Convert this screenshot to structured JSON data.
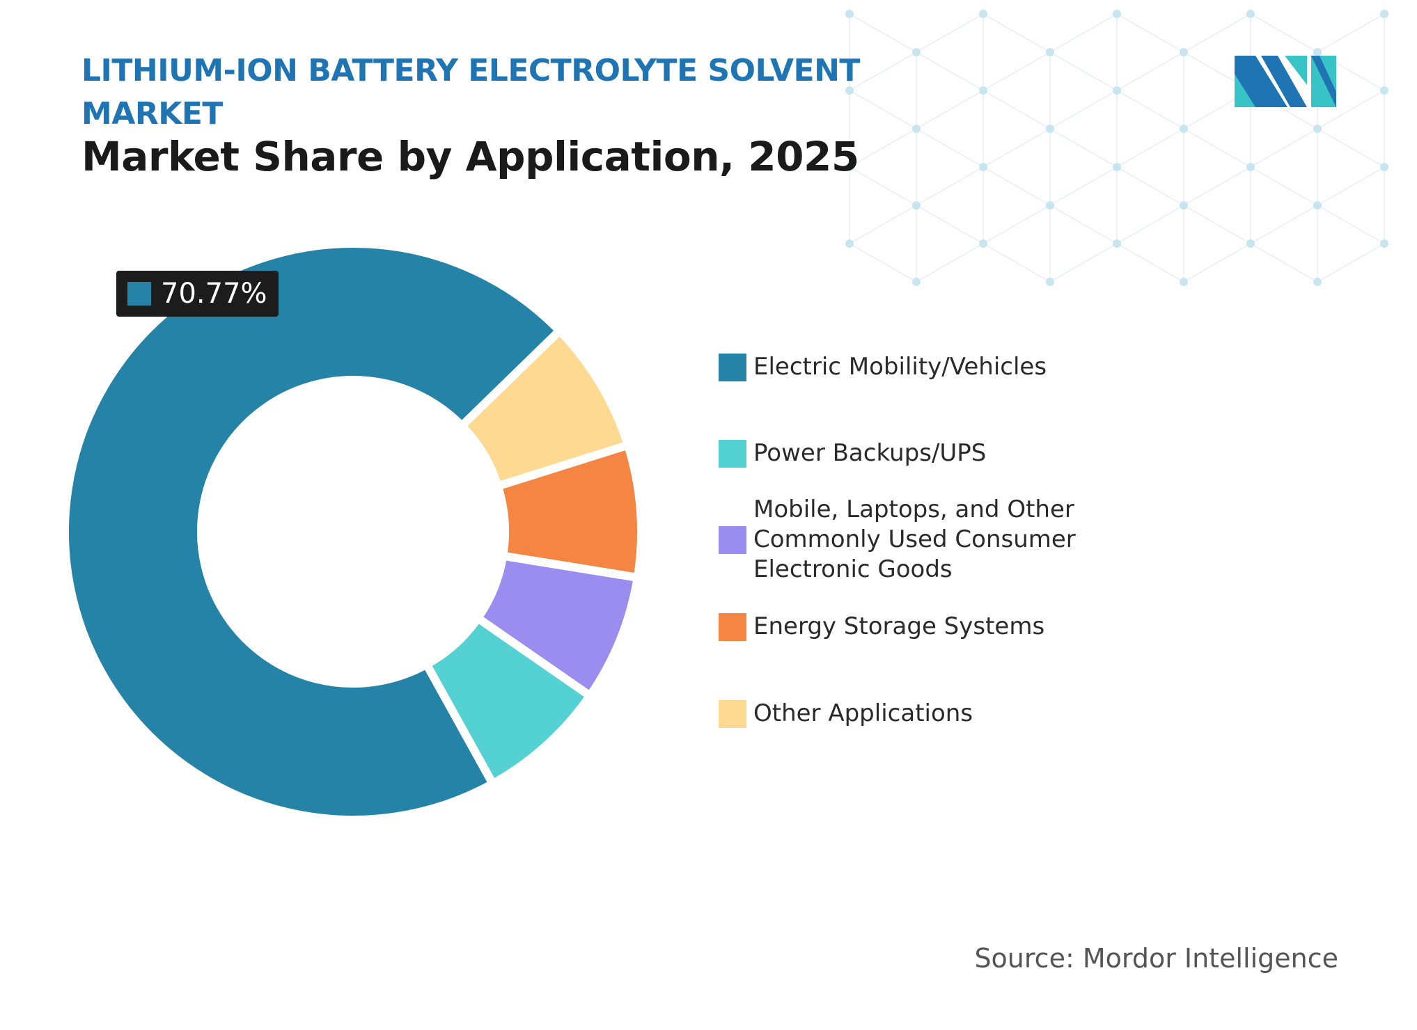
{
  "header": {
    "market_line_1": "LITHIUM-ION BATTERY ELECTROLYTE SOLVENT",
    "market_line_2": "MARKET",
    "title": "Market Share by Application, 2025"
  },
  "callout": {
    "label": "70.77%"
  },
  "source": {
    "text": "Source: Mordor Intelligence"
  },
  "colors": {
    "header_blue": "#1f74b4",
    "electric_mobility": "#2683a8",
    "power_backups": "#54d1d2",
    "consumer_electronics": "#9b8cf0",
    "energy_storage": "#f48542",
    "other_applications": "#fdd992",
    "pattern_dot": "#c7e5f1",
    "pattern_line": "#e8eef2"
  },
  "chart_data": {
    "type": "pie",
    "title": "Market Share by Application, 2025",
    "donut": true,
    "slices": [
      {
        "label": "Electric Mobility/Vehicles",
        "value": 70.77,
        "color": "#2683a8"
      },
      {
        "label": "Power Backups/UPS",
        "value": 7.3,
        "color": "#54d1d2"
      },
      {
        "label": "Mobile, Laptops, and Other Commonly Used Consumer Electronic Goods",
        "value": 7.1,
        "color": "#9b8cf0"
      },
      {
        "label": "Energy Storage Systems",
        "value": 7.4,
        "color": "#f48542"
      },
      {
        "label": "Other Applications",
        "value": 7.43,
        "color": "#fdd992"
      }
    ],
    "data_labels": [
      "70.77%"
    ],
    "legend_position": "right"
  },
  "legend": {
    "items": [
      {
        "label": "Electric Mobility/Vehicles",
        "color": "#2683a8"
      },
      {
        "label": "Power Backups/UPS",
        "color": "#54d1d2"
      },
      {
        "label": "Mobile, Laptops, and Other Commonly Used Consumer Electronic Goods",
        "color": "#9b8cf0"
      },
      {
        "label": "Energy Storage Systems",
        "color": "#f48542"
      },
      {
        "label": "Other Applications",
        "color": "#fdd992"
      }
    ]
  }
}
